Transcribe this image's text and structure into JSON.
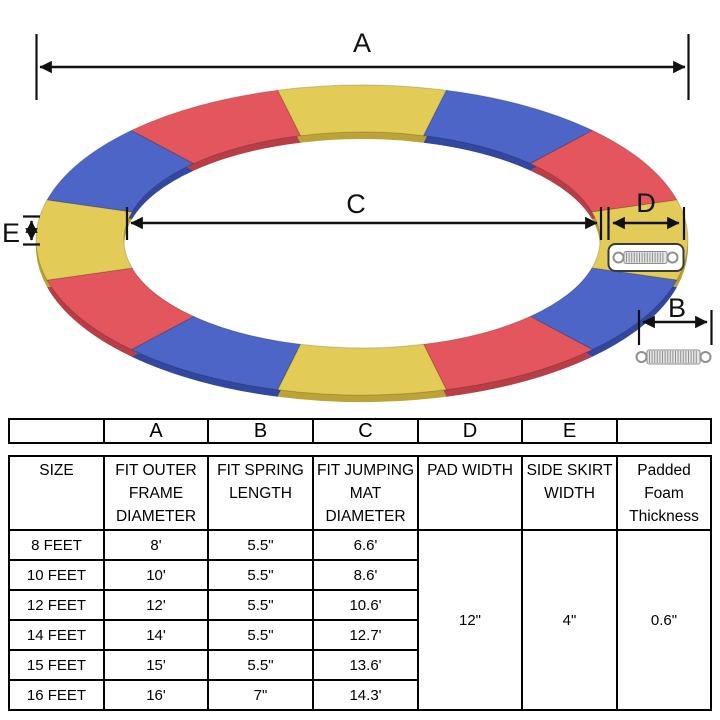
{
  "diagram": {
    "labels": {
      "a": "A",
      "b": "B",
      "c": "C",
      "d": "D",
      "e": "E"
    },
    "ring": {
      "colors": {
        "yellow": "#e3cb58",
        "blue": "#4c65c6",
        "red": "#e4565e"
      },
      "dark_colors": {
        "yellow": "#bda238",
        "blue": "#32479d",
        "red": "#b73e47"
      },
      "segments": [
        "yellow",
        "blue",
        "red",
        "yellow",
        "blue",
        "red",
        "yellow",
        "blue",
        "red",
        "yellow",
        "blue",
        "red"
      ]
    },
    "spring": {
      "outline_color": "#8f8f8f",
      "body_color": "#e6e6e6",
      "coil_color": "#909090",
      "box_border_color": "#3a3a3a"
    }
  },
  "table": {
    "letter_row": [
      "",
      "A",
      "B",
      "C",
      "D",
      "E",
      ""
    ],
    "headers": [
      {
        "lines": [
          "SIZE"
        ]
      },
      {
        "lines": [
          "FIT OUTER",
          "FRAME",
          "DIAMETER"
        ]
      },
      {
        "lines": [
          "FIT SPRING",
          "LENGTH"
        ]
      },
      {
        "lines": [
          "FIT JUMPING",
          "MAT",
          "DIAMETER"
        ]
      },
      {
        "lines": [
          "PAD WIDTH"
        ]
      },
      {
        "lines": [
          "SIDE SKIRT",
          "WIDTH"
        ]
      },
      {
        "lines": [
          "Padded",
          "Foam",
          "Thickness"
        ]
      }
    ],
    "rows": [
      {
        "size": "8 FEET",
        "outer_frame": "8'",
        "spring_length": "5.5\"",
        "mat_diameter": "6.6'"
      },
      {
        "size": "10 FEET",
        "outer_frame": "10'",
        "spring_length": "5.5\"",
        "mat_diameter": "8.6'"
      },
      {
        "size": "12 FEET",
        "outer_frame": "12'",
        "spring_length": "5.5\"",
        "mat_diameter": "10.6'"
      },
      {
        "size": "14 FEET",
        "outer_frame": "14'",
        "spring_length": "5.5\"",
        "mat_diameter": "12.7'"
      },
      {
        "size": "15 FEET",
        "outer_frame": "15'",
        "spring_length": "5.5\"",
        "mat_diameter": "13.6'"
      },
      {
        "size": "16 FEET",
        "outer_frame": "16'",
        "spring_length": "7\"",
        "mat_diameter": "14.3'"
      }
    ],
    "merged": {
      "pad_width": "12\"",
      "side_skirt_width": "4\"",
      "foam_thickness": "0.6\""
    }
  }
}
